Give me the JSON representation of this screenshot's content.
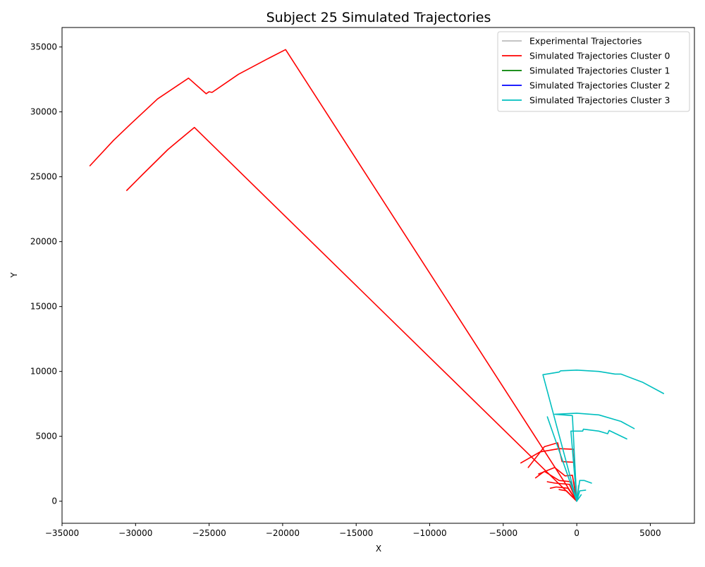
{
  "chart_data": {
    "type": "line",
    "title": "Subject 25 Simulated Trajectories",
    "xlabel": "X",
    "ylabel": "Y",
    "xlim": [
      -35000,
      8000
    ],
    "ylim": [
      -1700,
      36500
    ],
    "xticks": [
      -35000,
      -30000,
      -25000,
      -20000,
      -15000,
      -10000,
      -5000,
      0,
      5000
    ],
    "yticks": [
      0,
      5000,
      10000,
      15000,
      20000,
      25000,
      30000,
      35000
    ],
    "xtick_labels": [
      "−35000",
      "−30000",
      "−25000",
      "−20000",
      "−15000",
      "−10000",
      "−5000",
      "0",
      "5000"
    ],
    "ytick_labels": [
      "0",
      "5000",
      "10000",
      "15000",
      "20000",
      "25000",
      "30000",
      "35000"
    ],
    "grid": false,
    "legend_position": "top-right",
    "series": [
      {
        "name": "Experimental Trajectories",
        "color": "#bbbbbb",
        "lines": [
          [
            [
              0,
              0
            ],
            [
              -150,
              1500
            ]
          ],
          [
            [
              0,
              0
            ],
            [
              100,
              1200
            ]
          ],
          [
            [
              0,
              0
            ],
            [
              -80,
              800
            ]
          ]
        ]
      },
      {
        "name": "Simulated Trajectories Cluster 0",
        "color": "#ff0000",
        "lines": [
          [
            [
              0,
              0
            ],
            [
              -19800,
              34800
            ],
            [
              -21000,
              34100
            ],
            [
              -23000,
              32900
            ],
            [
              -24800,
              31500
            ],
            [
              -25000,
              31550
            ],
            [
              -25200,
              31400
            ],
            [
              -26400,
              32600
            ],
            [
              -28500,
              31000
            ],
            [
              -30300,
              29100
            ],
            [
              -31500,
              27800
            ],
            [
              -33100,
              25850
            ]
          ],
          [
            [
              0,
              0
            ],
            [
              -26000,
              28800
            ],
            [
              -27800,
              27100
            ],
            [
              -29500,
              25200
            ],
            [
              -30600,
              23950
            ]
          ],
          [
            [
              0,
              0
            ],
            [
              -200,
              4000
            ],
            [
              -1200,
              4050
            ],
            [
              -2500,
              3800
            ],
            [
              -3800,
              2950
            ]
          ],
          [
            [
              0,
              0
            ],
            [
              -200,
              3000
            ],
            [
              -1000,
              3050
            ],
            [
              -1300,
              4500
            ],
            [
              -2200,
              4200
            ],
            [
              -3300,
              2600
            ]
          ],
          [
            [
              0,
              0
            ],
            [
              -300,
              2000
            ],
            [
              -800,
              1950
            ],
            [
              -1500,
              2600
            ],
            [
              -2600,
              2100
            ]
          ],
          [
            [
              0,
              0
            ],
            [
              -400,
              1500
            ],
            [
              -1200,
              1600
            ],
            [
              -2200,
              2300
            ],
            [
              -2800,
              1800
            ]
          ],
          [
            [
              0,
              0
            ],
            [
              -500,
              1300
            ],
            [
              -1500,
              1400
            ],
            [
              -2000,
              1500
            ]
          ],
          [
            [
              0,
              0
            ],
            [
              -600,
              1000
            ],
            [
              -1400,
              1100
            ],
            [
              -1800,
              1000
            ]
          ],
          [
            [
              0,
              0
            ],
            [
              -700,
              800
            ],
            [
              -1200,
              900
            ]
          ]
        ]
      },
      {
        "name": "Simulated Trajectories Cluster 1",
        "color": "#008000",
        "lines": []
      },
      {
        "name": "Simulated Trajectories Cluster 2",
        "color": "#0000ff",
        "lines": []
      },
      {
        "name": "Simulated Trajectories Cluster 3",
        "color": "#00bfbf",
        "lines": [
          [
            [
              0,
              0
            ],
            [
              -2300,
              9750
            ],
            [
              -1200,
              9950
            ],
            [
              -1100,
              10050
            ],
            [
              0,
              10100
            ],
            [
              1500,
              10000
            ],
            [
              2600,
              9800
            ],
            [
              3000,
              9800
            ],
            [
              4500,
              9150
            ],
            [
              5900,
              8300
            ]
          ],
          [
            [
              0,
              0
            ],
            [
              -300,
              6600
            ],
            [
              -1500,
              6700
            ],
            [
              0,
              6780
            ],
            [
              1500,
              6650
            ],
            [
              3000,
              6150
            ],
            [
              3900,
              5600
            ]
          ],
          [
            [
              0,
              0
            ],
            [
              -1600,
              5200
            ],
            [
              -2000,
              6500
            ]
          ],
          [
            [
              0,
              0
            ],
            [
              -400,
              5400
            ],
            [
              400,
              5400
            ],
            [
              450,
              5550
            ],
            [
              1500,
              5400
            ],
            [
              2100,
              5200
            ],
            [
              2200,
              5450
            ],
            [
              3400,
              4800
            ]
          ],
          [
            [
              0,
              0
            ],
            [
              200,
              1600
            ],
            [
              500,
              1600
            ],
            [
              1000,
              1400
            ]
          ],
          [
            [
              0,
              0
            ],
            [
              200,
              800
            ],
            [
              600,
              850
            ]
          ],
          [
            [
              0,
              0
            ],
            [
              300,
              500
            ]
          ]
        ]
      }
    ]
  }
}
